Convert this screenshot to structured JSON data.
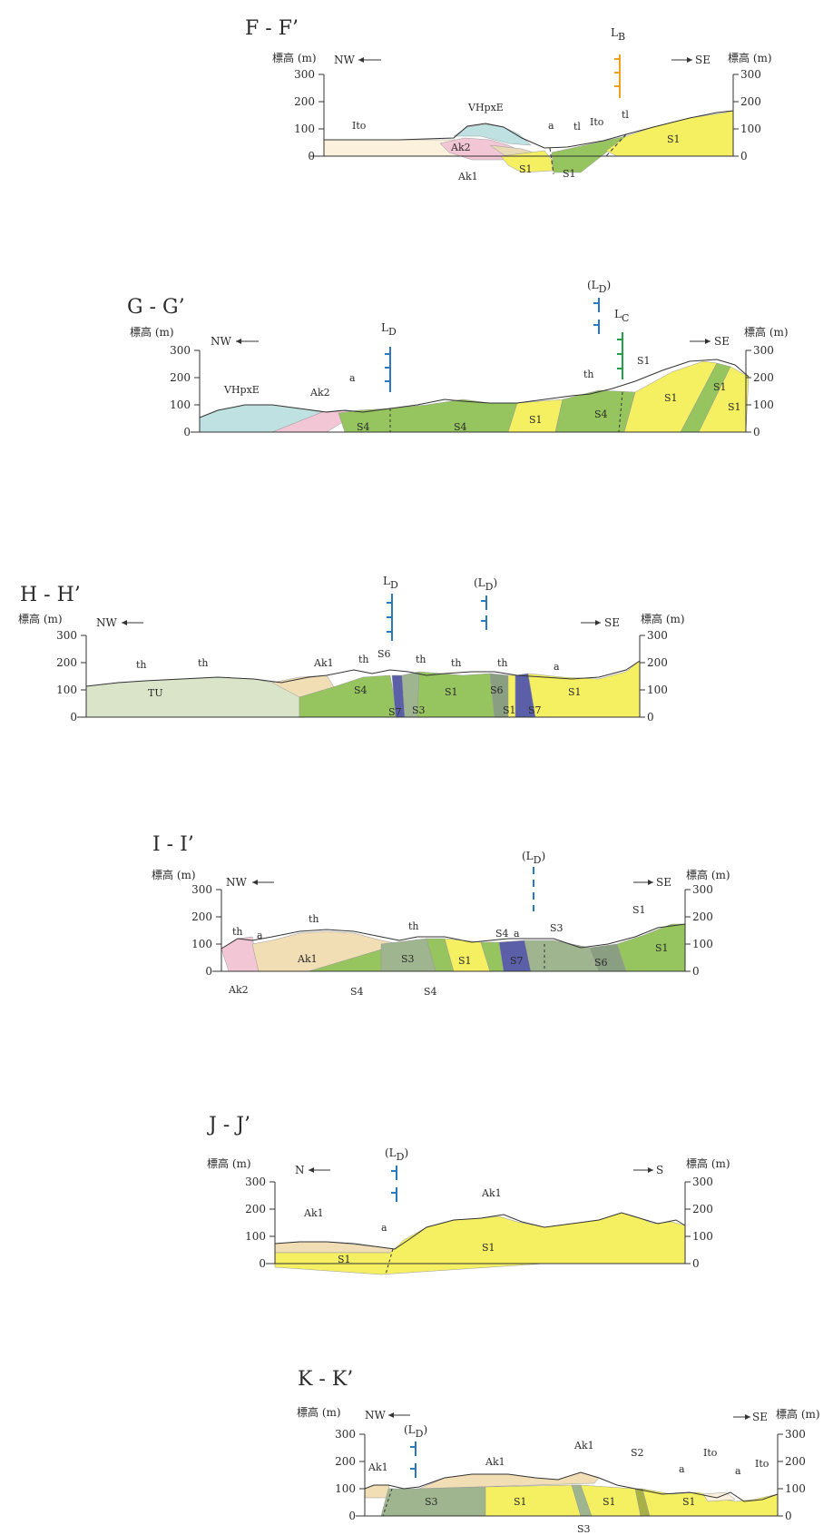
{
  "axis_label": "標高 (m)",
  "tick_labels": [
    "300",
    "200",
    "100",
    "0"
  ],
  "colors": {
    "S1": "#f5f062",
    "S3": "#9fb58f",
    "S4": "#96c45e",
    "S6": "#8a9f82",
    "S7": "#5a5fa8",
    "Ak1": "#f2deb5",
    "Ak2": "#f3c6d6",
    "VHpxE": "#bfe1e1",
    "Ito": "#fbf1dc",
    "TU": "#d9e4c8",
    "line_LB": "#f0a020",
    "line_LC": "#22a045",
    "line_LD": "#2a78c0"
  },
  "sections": {
    "ff": {
      "title": "F - F’",
      "dir_left": "NW",
      "dir_right": "SE",
      "lines": [
        {
          "label": "B"
        }
      ],
      "labels": [
        "VHpxE",
        "Ito",
        "Ak2",
        "Ak1",
        "a",
        "tl",
        "Ito",
        "tl",
        "S1",
        "S1",
        "S1",
        "S1"
      ]
    },
    "gg": {
      "title": "G - G’",
      "dir_left": "NW",
      "dir_right": "SE",
      "lines": [
        {
          "label": "D"
        },
        {
          "label": "D",
          "paren": true
        },
        {
          "label": "C"
        }
      ],
      "labels": [
        "VHpxE",
        "Ak2",
        "a",
        "S4",
        "S4",
        "S1",
        "th",
        "S4",
        "S1",
        "S1",
        "S1",
        "S1"
      ]
    },
    "hh": {
      "title": "H - H’",
      "dir_left": "NW",
      "dir_right": "SE",
      "lines": [
        {
          "label": "D"
        },
        {
          "label": "D",
          "paren": true
        }
      ],
      "labels": [
        "th",
        "th",
        "TU",
        "Ak1",
        "th",
        "S6",
        "th",
        "th",
        "th",
        "a",
        "S4",
        "S1",
        "S6",
        "S1",
        "S7",
        "S3",
        "S1",
        "S7"
      ]
    },
    "ii": {
      "title": "I - I’",
      "dir_left": "NW",
      "dir_right": "SE",
      "lines": [
        {
          "label": "D",
          "paren": true
        }
      ],
      "labels": [
        "th",
        "a",
        "th",
        "th",
        "Ak1",
        "S3",
        "S1",
        "S4",
        "a",
        "S7",
        "S3",
        "S1",
        "S6",
        "S1",
        "Ak2",
        "S4",
        "S4"
      ]
    },
    "jj": {
      "title": "J - J’",
      "dir_left": "N",
      "dir_right": "S",
      "lines": [
        {
          "label": "D",
          "paren": true
        }
      ],
      "labels": [
        "Ak1",
        "Ak1",
        "a",
        "S1",
        "S1"
      ]
    },
    "kk": {
      "title": "K - K’",
      "dir_left": "NW",
      "dir_right": "SE",
      "lines": [
        {
          "label": "D",
          "paren": true
        }
      ],
      "labels": [
        "Ak1",
        "Ak1",
        "Ak1",
        "S2",
        "Ito",
        "a",
        "a",
        "Ito",
        "S3",
        "S1",
        "S1",
        "S1",
        "S3"
      ]
    }
  }
}
